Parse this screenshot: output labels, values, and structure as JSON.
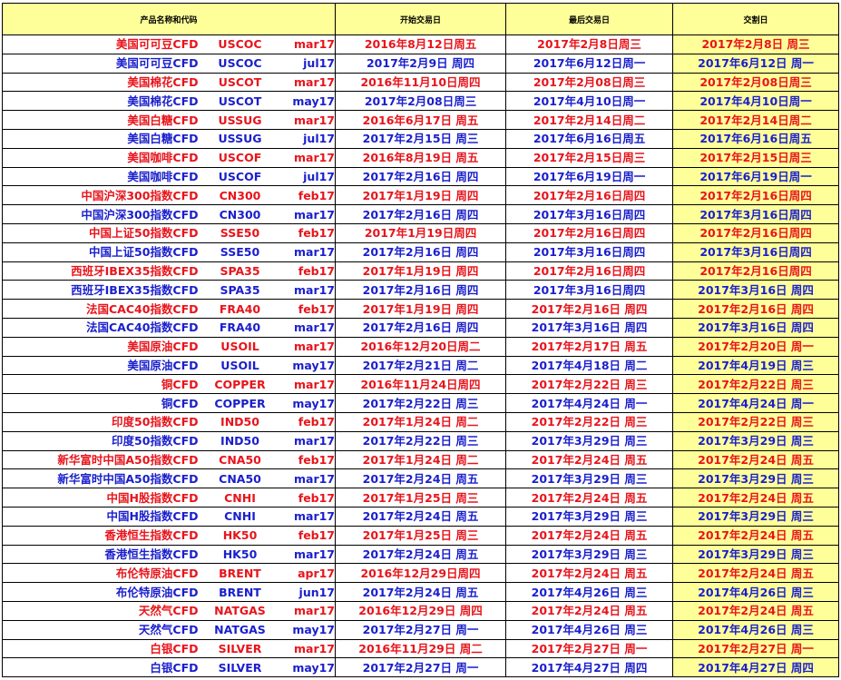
{
  "headers": {
    "product": "产品名称和代码",
    "start": "开始交易日",
    "last": "最后交易日",
    "delivery": "交割日"
  },
  "colors": {
    "red_text": "#e8141b",
    "blue_text": "#1a1fcc",
    "header_bg": "#ffff99",
    "delivery_bg": "#ffff99"
  },
  "rows": [
    {
      "color": "red",
      "name": "美国可可豆CFD",
      "code": "USCOC",
      "month": "mar17",
      "start": "2016年8月12日周五",
      "last": "2017年2月8日周三",
      "delivery": "2017年2月8日 周三"
    },
    {
      "color": "blue",
      "name": "美国可可豆CFD",
      "code": "USCOC",
      "month": "jul17",
      "start": "2017年2月9日 周四",
      "last": "2017年6月12日周一",
      "delivery": "2017年6月12日 周一"
    },
    {
      "color": "red",
      "name": "美国棉花CFD",
      "code": "USCOT",
      "month": "mar17",
      "start": "2016年11月10日周四",
      "last": "2017年2月08日周三",
      "delivery": "2017年2月08日周三"
    },
    {
      "color": "blue",
      "name": "美国棉花CFD",
      "code": "USCOT",
      "month": "may17",
      "start": "2017年2月08日周三",
      "last": "2017年4月10日周一",
      "delivery": "2017年4月10日周一"
    },
    {
      "color": "red",
      "name": "美国白糖CFD",
      "code": "USSUG",
      "month": "mar17",
      "start": "2016年6月17日 周五",
      "last": "2017年2月14日周二",
      "delivery": "2017年2月14日周二"
    },
    {
      "color": "blue",
      "name": "美国白糖CFD",
      "code": "USSUG",
      "month": "jul17",
      "start": "2017年2月15日 周三",
      "last": "2017年6月16日周五",
      "delivery": "2017年6月16日周五"
    },
    {
      "color": "red",
      "name": "美国咖啡CFD",
      "code": "USCOF",
      "month": "mar17",
      "start": "2016年8月19日 周五",
      "last": "2017年2月15日周三",
      "delivery": "2017年2月15日周三"
    },
    {
      "color": "blue",
      "name": "美国咖啡CFD",
      "code": "USCOF",
      "month": "jul17",
      "start": "2017年2月16日 周四",
      "last": "2017年6月19日周一",
      "delivery": "2017年6月19日周一"
    },
    {
      "color": "red",
      "name": "中国沪深300指数CFD",
      "code": "CN300",
      "month": "feb17",
      "start": "2017年1月19日 周四",
      "last": "2017年2月16日周四",
      "delivery": "2017年2月16日周四"
    },
    {
      "color": "blue",
      "name": "中国沪深300指数CFD",
      "code": "CN300",
      "month": "mar17",
      "start": "2017年2月16日 周四",
      "last": "2017年3月16日周四",
      "delivery": "2017年3月16日周四"
    },
    {
      "color": "red",
      "name": "中国上证50指数CFD",
      "code": "SSE50",
      "month": "feb17",
      "start": "2017年1月19日周四",
      "last": "2017年2月16日周四",
      "delivery": "2017年2月16日周四"
    },
    {
      "color": "blue",
      "name": "中国上证50指数CFD",
      "code": "SSE50",
      "month": "mar17",
      "start": "2017年2月16日 周四",
      "last": "2017年3月16日周四",
      "delivery": "2017年3月16日周四"
    },
    {
      "color": "red",
      "name": "西班牙IBEX35指数CFD",
      "code": "SPA35",
      "month": "feb17",
      "start": "2017年1月19日 周四",
      "last": "2017年2月16日周四",
      "delivery": "2017年2月16日周四"
    },
    {
      "color": "blue",
      "name": "西班牙IBEX35指数CFD",
      "code": "SPA35",
      "month": "mar17",
      "start": "2017年2月16日 周四",
      "last": "2017年3月16日周四",
      "delivery": "2017年3月16日 周四"
    },
    {
      "color": "red",
      "name": "法国CAC40指数CFD",
      "code": "FRA40",
      "month": "feb17",
      "start": "2017年1月19日 周四",
      "last": "2017年2月16日 周四",
      "delivery": "2017年2月16日 周四"
    },
    {
      "color": "blue",
      "name": "法国CAC40指数CFD",
      "code": "FRA40",
      "month": "mar17",
      "start": "2017年2月16日 周四",
      "last": "2017年3月16日 周四",
      "delivery": "2017年3月16日 周四"
    },
    {
      "color": "red",
      "name": "美国原油CFD",
      "code": "USOIL",
      "month": "mar17",
      "start": "2016年12月20日周二",
      "last": "2017年2月17日 周五",
      "delivery": "2017年2月20日 周一"
    },
    {
      "color": "blue",
      "name": "美国原油CFD",
      "code": "USOIL",
      "month": "may17",
      "start": "2017年2月21日 周二",
      "last": "2017年4月18日 周二",
      "delivery": "2017年4月19日 周三"
    },
    {
      "color": "red",
      "name": "铜CFD",
      "code": "COPPER",
      "month": "mar17",
      "start": "2016年11月24日周四",
      "last": "2017年2月22日 周三",
      "delivery": "2017年2月22日 周三"
    },
    {
      "color": "blue",
      "name": "铜CFD",
      "code": "COPPER",
      "month": "may17",
      "start": "2017年2月22日 周三",
      "last": "2017年4月24日 周一",
      "delivery": "2017年4月24日 周一"
    },
    {
      "color": "red",
      "name": "印度50指数CFD",
      "code": "IND50",
      "month": "feb17",
      "start": "2017年1月24日 周二",
      "last": "2017年2月22日 周三",
      "delivery": "2017年2月22日 周三"
    },
    {
      "color": "blue",
      "name": "印度50指数CFD",
      "code": "IND50",
      "month": "mar17",
      "start": "2017年2月22日 周三",
      "last": "2017年3月29日 周三",
      "delivery": "2017年3月29日 周三"
    },
    {
      "color": "red",
      "name": "新华富时中国A50指数CFD",
      "code": "CNA50",
      "month": "feb17",
      "start": "2017年1月24日 周二",
      "last": "2017年2月24日 周五",
      "delivery": "2017年2月24日 周五"
    },
    {
      "color": "blue",
      "name": "新华富时中国A50指数CFD",
      "code": "CNA50",
      "month": "mar17",
      "start": "2017年2月24日 周五",
      "last": "2017年3月29日 周三",
      "delivery": "2017年3月29日 周三"
    },
    {
      "color": "red",
      "name": "中国H股指数CFD",
      "code": "CNHI",
      "month": "feb17",
      "start": "2017年1月25日 周三",
      "last": "2017年2月24日 周五",
      "delivery": "2017年2月24日 周五"
    },
    {
      "color": "blue",
      "name": "中国H股指数CFD",
      "code": "CNHI",
      "month": "mar17",
      "start": "2017年2月24日 周五",
      "last": "2017年3月29日 周三",
      "delivery": "2017年3月29日 周三"
    },
    {
      "color": "red",
      "name": "香港恒生指数CFD",
      "code": "HK50",
      "month": "feb17",
      "start": "2017年1月25日 周三",
      "last": "2017年2月24日 周五",
      "delivery": "2017年2月24日 周五"
    },
    {
      "color": "blue",
      "name": "香港恒生指数CFD",
      "code": "HK50",
      "month": "mar17",
      "start": "2017年2月24日 周五",
      "last": "2017年3月29日 周三",
      "delivery": "2017年3月29日 周三"
    },
    {
      "color": "red",
      "name": "布伦特原油CFD",
      "code": "BRENT",
      "month": "apr17",
      "start": "2016年12月29日周四",
      "last": "2017年2月24日 周五",
      "delivery": "2017年2月24日 周五"
    },
    {
      "color": "blue",
      "name": "布伦特原油CFD",
      "code": "BRENT",
      "month": "jun17",
      "start": "2017年2月24日 周五",
      "last": "2017年4月26日 周三",
      "delivery": "2017年4月26日 周三"
    },
    {
      "color": "red",
      "name": "天然气CFD",
      "code": "NATGAS",
      "month": "mar17",
      "start": "2016年12月29日 周四",
      "last": "2017年2月24日 周五",
      "delivery": "2017年2月24日 周五"
    },
    {
      "color": "blue",
      "name": "天然气CFD",
      "code": "NATGAS",
      "month": "may17",
      "start": "2017年2月27日 周一",
      "last": "2017年4月26日 周三",
      "delivery": "2017年4月26日 周三"
    },
    {
      "color": "red",
      "name": "白银CFD",
      "code": "SILVER",
      "month": "mar17",
      "start": "2016年11月29日 周二",
      "last": "2017年2月27日 周一",
      "delivery": "2017年2月27日 周一"
    },
    {
      "color": "blue",
      "name": "白银CFD",
      "code": "SILVER",
      "month": "may17",
      "start": "2017年2月27日 周一",
      "last": "2017年4月27日 周四",
      "delivery": "2017年4月27日 周四"
    }
  ]
}
